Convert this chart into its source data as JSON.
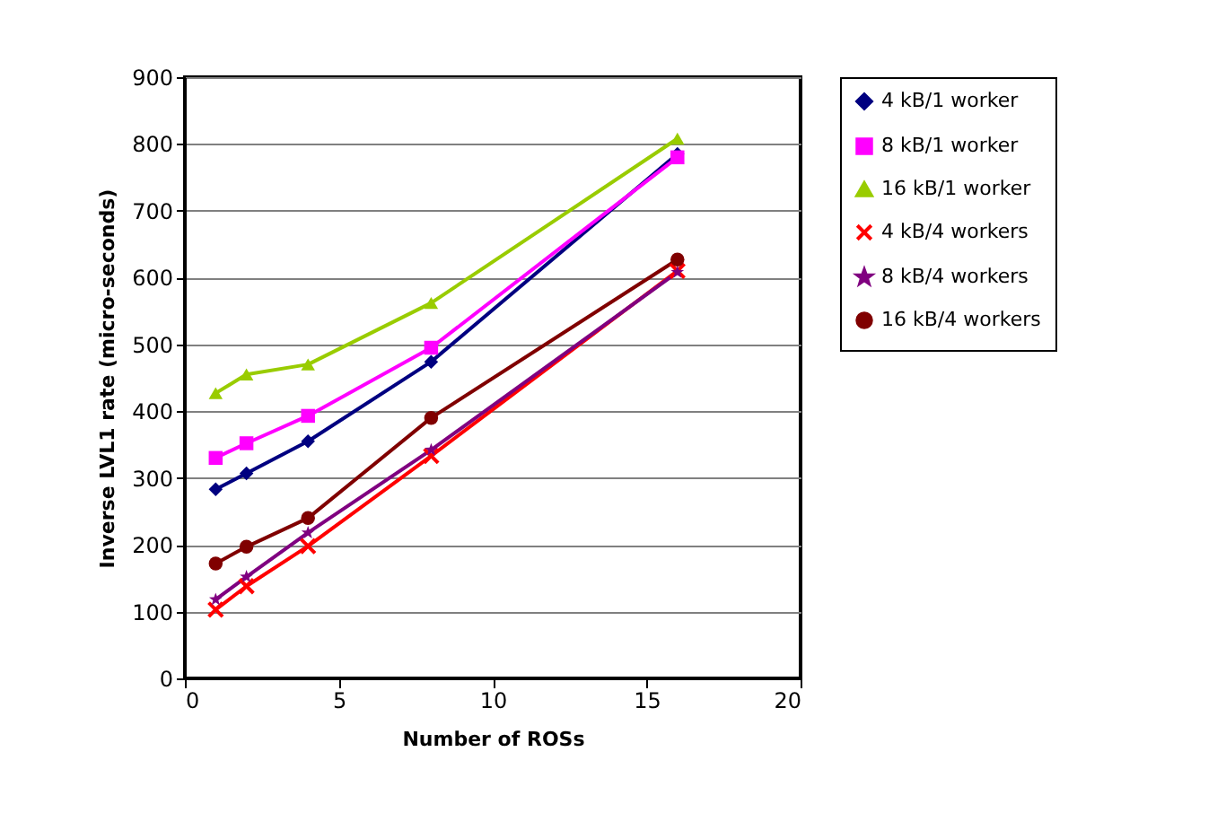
{
  "chart_data": {
    "type": "line",
    "xlabel": "Number of ROSs",
    "ylabel": "Inverse LVL1 rate (micro-seconds)",
    "x": [
      1,
      2,
      4,
      8,
      16
    ],
    "series": [
      {
        "name": "4 kB/1 worker",
        "color": "#000080",
        "marker": "diamond",
        "values": [
          283,
          307,
          355,
          474,
          785
        ]
      },
      {
        "name": "8 kB/1 worker",
        "color": "#ff00ff",
        "marker": "square",
        "values": [
          330,
          352,
          393,
          495,
          780
        ]
      },
      {
        "name": "16 kB/1 worker",
        "color": "#99cc00",
        "marker": "triangle",
        "values": [
          427,
          455,
          470,
          562,
          808
        ]
      },
      {
        "name": "4 kB/4 workers",
        "color": "#ff0000",
        "marker": "cross",
        "values": [
          103,
          138,
          198,
          333,
          610
        ]
      },
      {
        "name": "8 kB/4 workers",
        "color": "#800080",
        "marker": "star",
        "values": [
          118,
          152,
          218,
          342,
          608
        ]
      },
      {
        "name": "16 kB/4 workers",
        "color": "#800000",
        "marker": "circle",
        "values": [
          172,
          197,
          240,
          390,
          627
        ]
      }
    ],
    "xlim": [
      0,
      20
    ],
    "xticks": [
      0,
      5,
      10,
      15,
      20
    ],
    "ylim": [
      0,
      900
    ],
    "yticks": [
      0,
      100,
      200,
      300,
      400,
      500,
      600,
      700,
      800,
      900
    ],
    "grid": "y",
    "legend": "right",
    "line_style": "solid"
  }
}
